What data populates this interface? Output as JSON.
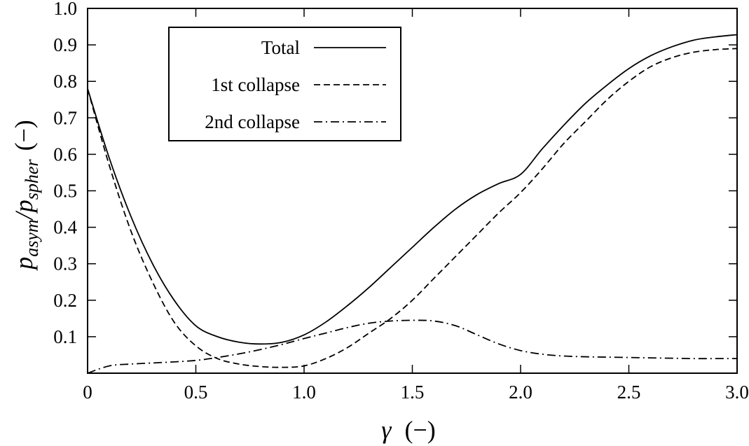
{
  "chart_data": {
    "type": "line",
    "title": "",
    "xlabel": {
      "symbol": "γ",
      "unit": "(−)"
    },
    "ylabel": {
      "main": "p",
      "sub1": "asym",
      "sep": "/p",
      "sub2": "spher",
      "unit": "(−)"
    },
    "xlim": [
      0,
      3.0
    ],
    "ylim": [
      0,
      1.0
    ],
    "x_ticks": [
      0,
      0.5,
      1.0,
      1.5,
      2.0,
      2.5,
      3.0
    ],
    "x_tick_labels": [
      "0",
      "0.5",
      "1.0",
      "1.5",
      "2.0",
      "2.5",
      "3.0"
    ],
    "y_ticks": [
      0.1,
      0.2,
      0.3,
      0.4,
      0.5,
      0.6,
      0.7,
      0.8,
      0.9,
      1.0
    ],
    "y_tick_labels": [
      "0.1",
      "0.2",
      "0.3",
      "0.4",
      "0.5",
      "0.6",
      "0.7",
      "0.8",
      "0.9",
      "1.0"
    ],
    "grid": false,
    "legend_position": "top-left",
    "series": [
      {
        "name": "Total",
        "style": "solid",
        "x": [
          0,
          0.1,
          0.2,
          0.3,
          0.4,
          0.5,
          0.6,
          0.7,
          0.8,
          0.9,
          1.0,
          1.1,
          1.2,
          1.3,
          1.4,
          1.5,
          1.6,
          1.7,
          1.8,
          1.9,
          2.0,
          2.1,
          2.2,
          2.3,
          2.4,
          2.5,
          2.6,
          2.7,
          2.8,
          2.9,
          3.0
        ],
        "y": [
          0.78,
          0.59,
          0.43,
          0.3,
          0.2,
          0.13,
          0.1,
          0.085,
          0.08,
          0.085,
          0.105,
          0.14,
          0.185,
          0.235,
          0.29,
          0.345,
          0.4,
          0.45,
          0.49,
          0.52,
          0.545,
          0.615,
          0.68,
          0.74,
          0.79,
          0.835,
          0.87,
          0.895,
          0.913,
          0.922,
          0.928
        ]
      },
      {
        "name": "1st collapse",
        "style": "dashed",
        "x": [
          0,
          0.1,
          0.2,
          0.3,
          0.4,
          0.5,
          0.6,
          0.7,
          0.8,
          0.9,
          1.0,
          1.1,
          1.2,
          1.3,
          1.4,
          1.5,
          1.6,
          1.7,
          1.8,
          1.9,
          2.0,
          2.1,
          2.2,
          2.3,
          2.4,
          2.5,
          2.6,
          2.7,
          2.8,
          2.9,
          3.0
        ],
        "y": [
          0.78,
          0.57,
          0.39,
          0.25,
          0.14,
          0.075,
          0.04,
          0.025,
          0.018,
          0.016,
          0.02,
          0.04,
          0.07,
          0.11,
          0.15,
          0.2,
          0.26,
          0.32,
          0.38,
          0.44,
          0.495,
          0.56,
          0.63,
          0.69,
          0.75,
          0.8,
          0.84,
          0.865,
          0.88,
          0.887,
          0.89
        ]
      },
      {
        "name": "2nd collapse",
        "style": "dashdot",
        "x": [
          0,
          0.1,
          0.2,
          0.3,
          0.4,
          0.5,
          0.6,
          0.7,
          0.8,
          0.9,
          1.0,
          1.1,
          1.2,
          1.3,
          1.4,
          1.5,
          1.6,
          1.7,
          1.8,
          1.9,
          2.0,
          2.1,
          2.2,
          2.3,
          2.4,
          2.5,
          2.6,
          2.7,
          2.8,
          2.9,
          3.0
        ],
        "y": [
          0.0,
          0.02,
          0.025,
          0.028,
          0.031,
          0.035,
          0.043,
          0.053,
          0.065,
          0.079,
          0.095,
          0.11,
          0.125,
          0.137,
          0.143,
          0.145,
          0.143,
          0.13,
          0.105,
          0.08,
          0.062,
          0.052,
          0.047,
          0.045,
          0.044,
          0.043,
          0.042,
          0.041,
          0.04,
          0.04,
          0.04
        ]
      }
    ]
  }
}
